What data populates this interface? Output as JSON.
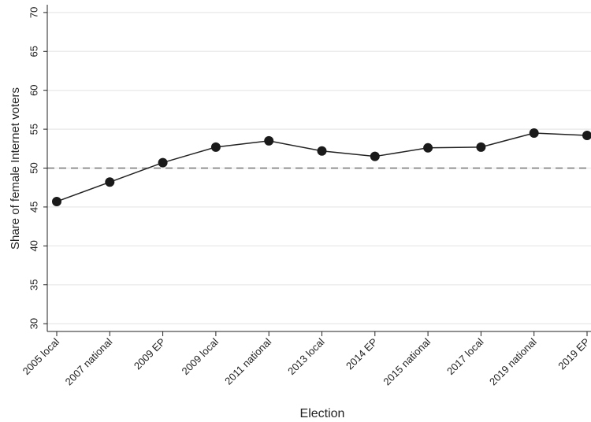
{
  "chart_data": {
    "type": "line",
    "title": "",
    "xlabel": "Election",
    "ylabel": "Share of female Internet voters",
    "categories": [
      "2005 local",
      "2007 national",
      "2009 EP",
      "2009 local",
      "2011 national",
      "2013 local",
      "2014 EP",
      "2015 national",
      "2017 local",
      "2019 national",
      "2019 EP"
    ],
    "series": [
      {
        "values": [
          45.7,
          48.2,
          50.7,
          52.7,
          53.5,
          52.2,
          51.5,
          52.6,
          52.7,
          54.5,
          54.2
        ]
      }
    ],
    "yticks": [
      30,
      35,
      40,
      45,
      50,
      55,
      60,
      65,
      70
    ],
    "ylim": [
      29,
      71
    ],
    "reference_line": {
      "y": 50,
      "style": "dashed"
    },
    "grid": "horizontal",
    "colors": {
      "line": "#222222",
      "marker": "#1a1a1a",
      "grid": "#ececec",
      "reference": "#777777"
    }
  }
}
